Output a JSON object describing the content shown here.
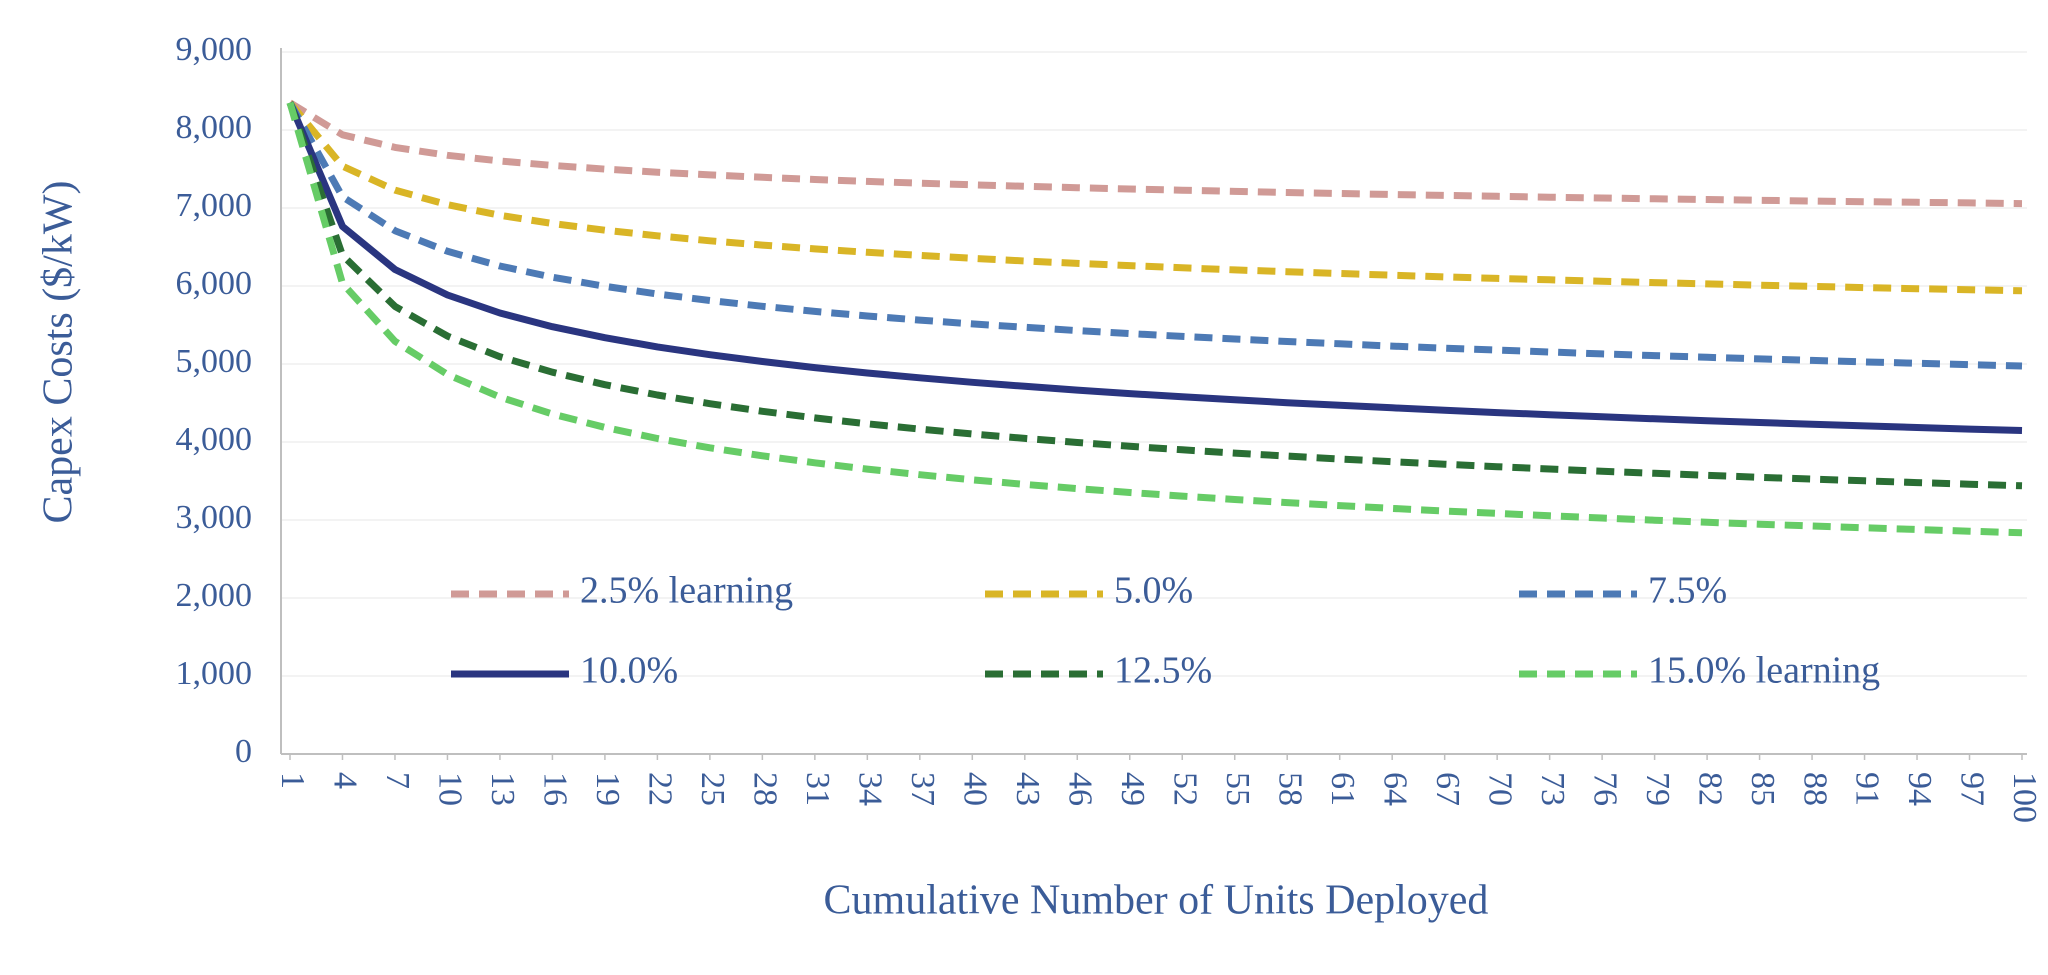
{
  "chart_data": {
    "type": "line",
    "y_label": "Capex Costs ($/kW)",
    "x_label": "Cumulative Number of Units Deployed",
    "x": [
      1,
      4,
      7,
      10,
      13,
      16,
      19,
      22,
      25,
      28,
      31,
      34,
      37,
      40,
      43,
      46,
      49,
      52,
      55,
      58,
      61,
      64,
      67,
      70,
      73,
      76,
      79,
      82,
      85,
      88,
      91,
      94,
      97,
      100
    ],
    "xlim": [
      1,
      100
    ],
    "xticks": [
      1,
      4,
      7,
      10,
      13,
      16,
      19,
      22,
      25,
      28,
      31,
      34,
      37,
      40,
      43,
      46,
      49,
      52,
      55,
      58,
      61,
      64,
      67,
      70,
      73,
      76,
      79,
      82,
      85,
      88,
      91,
      94,
      97,
      100
    ],
    "ylim": [
      0,
      9000
    ],
    "yticks": [
      0,
      {
        "value": 1000,
        "label": "1,000"
      },
      {
        "value": 2000,
        "label": "2,000"
      },
      {
        "value": 3000,
        "label": "3,000"
      },
      {
        "value": 4000,
        "label": "4,000"
      },
      {
        "value": 5000,
        "label": "5,000"
      },
      {
        "value": 6000,
        "label": "6,000"
      },
      {
        "value": 7000,
        "label": "7,000"
      },
      {
        "value": 8000,
        "label": "8,000"
      },
      {
        "value": 9000,
        "label": "9,000"
      }
    ],
    "grid": true,
    "legend": "inside-bottom",
    "series": [
      {
        "name": "2.5% learning",
        "color": "#d09a96",
        "dashed": true,
        "values": [
          8350,
          7938,
          7777,
          7676,
          7603,
          7546,
          7499,
          7459,
          7424,
          7393,
          7366,
          7341,
          7318,
          7297,
          7278,
          7260,
          7244,
          7228,
          7213,
          7199,
          7186,
          7173,
          7161,
          7150,
          7139,
          7128,
          7118,
          7109,
          7099,
          7090,
          7081,
          7073,
          7065,
          7057
        ]
      },
      {
        "name": "5.0%",
        "color": "#d9b526",
        "dashed": true,
        "values": [
          8350,
          7536,
          7230,
          7042,
          6906,
          6801,
          6715,
          6643,
          6580,
          6525,
          6476,
          6432,
          6392,
          6355,
          6321,
          6290,
          6261,
          6233,
          6207,
          6183,
          6160,
          6138,
          6117,
          6097,
          6079,
          6061,
          6043,
          6027,
          6010,
          5995,
          5980,
          5966,
          5952,
          5939
        ]
      },
      {
        "name": "7.5%",
        "color": "#4d7ab5",
        "dashed": true,
        "values": [
          8350,
          7144,
          6709,
          6445,
          6257,
          6113,
          5996,
          5898,
          5814,
          5740,
          5675,
          5616,
          5563,
          5514,
          5470,
          5428,
          5390,
          5354,
          5320,
          5289,
          5259,
          5230,
          5203,
          5178,
          5154,
          5130,
          5108,
          5086,
          5066,
          5046,
          5027,
          5009,
          4991,
          4974
        ]
      },
      {
        "name": "10.0%",
        "color": "#2a3580",
        "dashed": false,
        "values": [
          8350,
          6764,
          6212,
          5884,
          5654,
          5478,
          5337,
          5219,
          5119,
          5032,
          4954,
          4885,
          4823,
          4766,
          4714,
          4666,
          4621,
          4580,
          4541,
          4504,
          4470,
          4438,
          4407,
          4377,
          4350,
          4323,
          4298,
          4273,
          4250,
          4228,
          4206,
          4186,
          4166,
          4147
        ]
      },
      {
        "name": "12.5%",
        "color": "#2a6e34",
        "dashed": true,
        "values": [
          8350,
          6393,
          5739,
          5358,
          5094,
          4895,
          4735,
          4603,
          4491,
          4394,
          4309,
          4233,
          4165,
          4103,
          4046,
          3994,
          3945,
          3900,
          3858,
          3819,
          3782,
          3747,
          3715,
          3683,
          3654,
          3625,
          3599,
          3573,
          3548,
          3524,
          3502,
          3480,
          3459,
          3439
        ]
      },
      {
        "name": "15.0% learning",
        "color": "#66cc66",
        "dashed": true,
        "values": [
          8350,
          6033,
          5291,
          4866,
          4576,
          4359,
          4187,
          4045,
          3926,
          3823,
          3733,
          3653,
          3581,
          3516,
          3457,
          3403,
          3353,
          3306,
          3263,
          3223,
          3185,
          3149,
          3116,
          3084,
          3054,
          3025,
          2998,
          2971,
          2946,
          2923,
          2900,
          2878,
          2857,
          2836
        ]
      }
    ]
  }
}
